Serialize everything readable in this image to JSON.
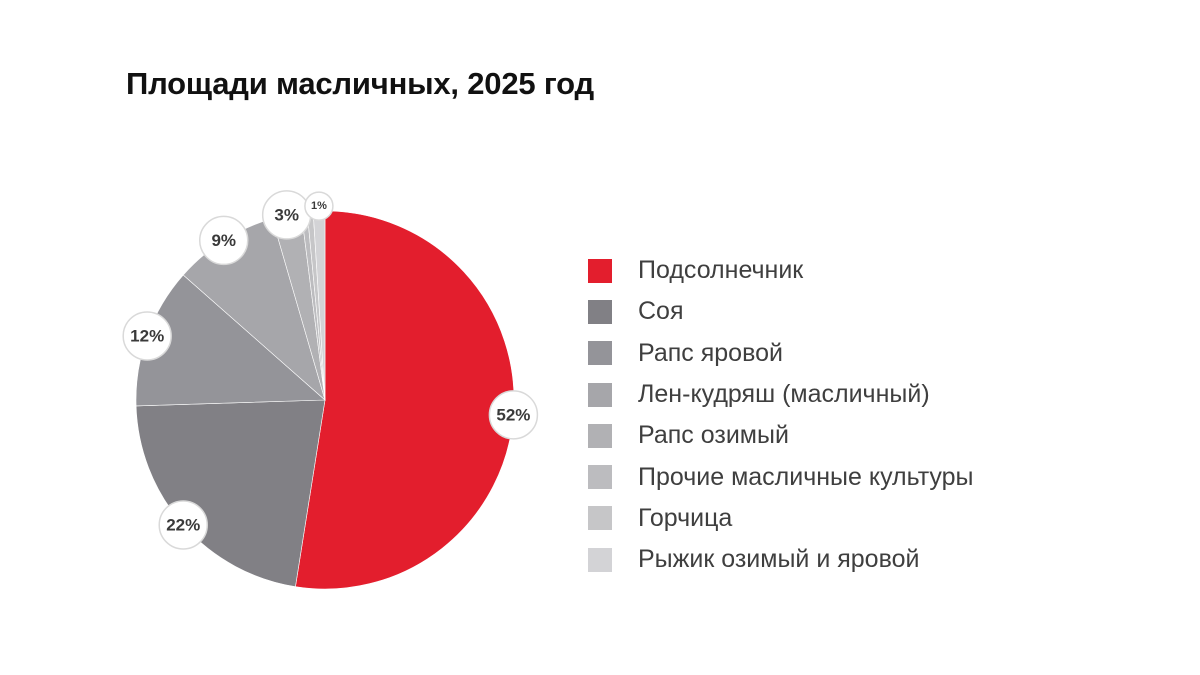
{
  "chart_data": {
    "type": "pie",
    "title": "Площади масличных, 2025 год",
    "categories": [
      "Подсолнечник",
      "Соя",
      "Рапс яровой",
      "Лен-кудряш (масличный)",
      "Рапс озимый",
      "Прочие масличные культуры",
      "Горчица",
      "Рыжик озимый и яровой"
    ],
    "values": [
      52.5,
      22,
      12,
      9,
      2.5,
      0.5,
      0.5,
      1
    ],
    "data_labels": [
      "52%",
      "22%",
      "12%",
      "9%",
      "3%",
      "",
      "",
      "1%"
    ],
    "colors": [
      "#e31e2d",
      "#818085",
      "#949499",
      "#a6a6aa",
      "#b1b1b4",
      "#bcbcbf",
      "#c6c6c8",
      "#d3d3d6"
    ],
    "start_angle_deg": 0,
    "direction": "clockwise",
    "legend_position": "right"
  }
}
